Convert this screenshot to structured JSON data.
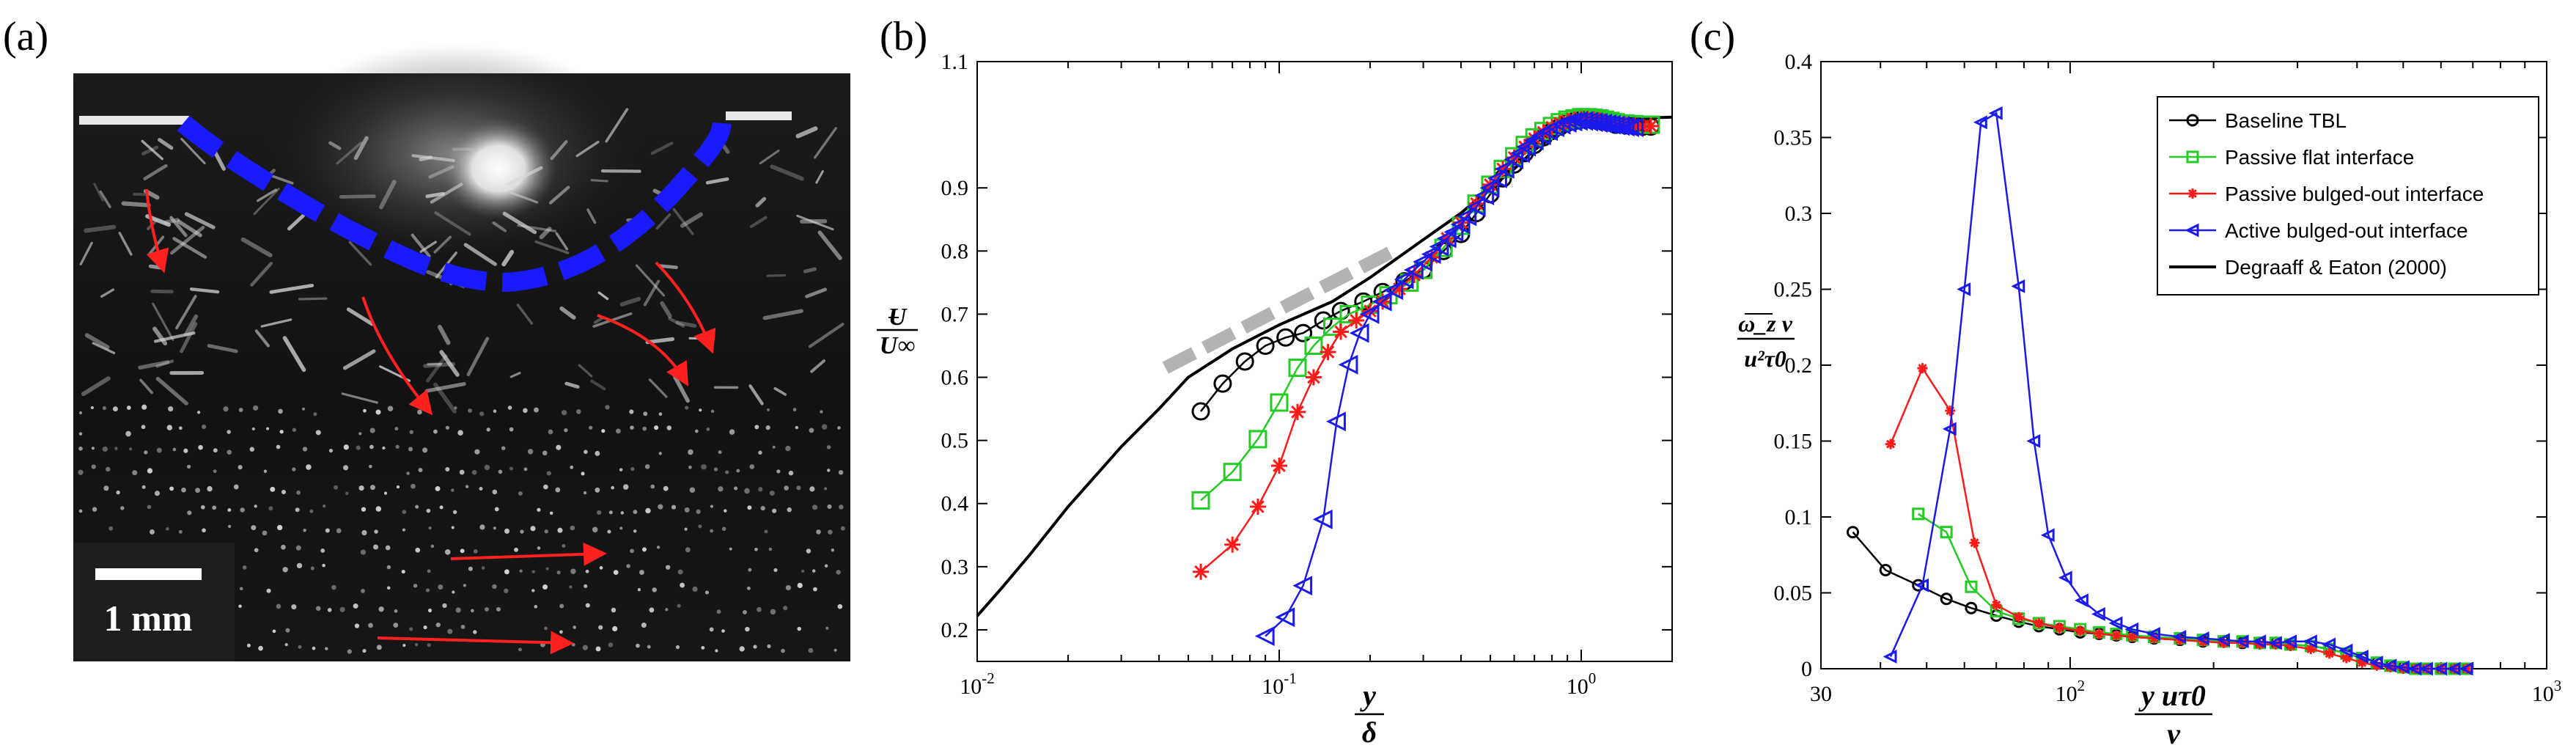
{
  "figure": {
    "panel_a": {
      "label": "(a)",
      "scale_bar_label": "1 mm",
      "colors": {
        "interface": "#1a1aff",
        "arrows": "#ff2020"
      }
    },
    "panel_b_label": "(b)",
    "panel_c_label": "(c)",
    "b_ylabel": {
      "num": "U",
      "den": "U∞"
    },
    "b_xlabel": {
      "num": "y",
      "den": "δ"
    },
    "c_ylabel": {
      "num": "ω_z ν",
      "den": "u²τ0"
    },
    "c_xlabel": {
      "num": "y uτ0",
      "den": "ν"
    }
  },
  "chart_data": [
    {
      "panel": "b",
      "type": "scatter",
      "xscale": "log",
      "xlim": [
        0.01,
        2.0
      ],
      "ylim": [
        0.15,
        1.1
      ],
      "xticks": [
        0.01,
        0.1,
        1
      ],
      "xtick_labels": [
        "10-2",
        "10-1",
        "100"
      ],
      "yticks": [
        0.2,
        0.3,
        0.4,
        0.5,
        0.6,
        0.7,
        0.8,
        0.9,
        1.1
      ],
      "ytick_labels": [
        "0.2",
        "0.3",
        "0.4",
        "0.5",
        "0.6",
        "0.7",
        "0.8",
        "0.9",
        "1.1"
      ],
      "reference_slope": {
        "x": [
          0.042,
          0.25
        ],
        "y": [
          0.615,
          0.805
        ],
        "color": "#b3b3b3"
      },
      "series": [
        {
          "name": "Degraaff & Eaton (2000)",
          "color": "#000000",
          "marker": "none",
          "x": [
            0.01,
            0.012,
            0.015,
            0.02,
            0.03,
            0.04,
            0.05,
            0.07,
            0.1,
            0.15,
            0.2,
            0.3,
            0.4,
            0.5,
            0.6,
            0.7,
            0.8,
            0.9,
            1.0,
            1.2,
            1.5,
            2.0
          ],
          "y": [
            0.222,
            0.265,
            0.32,
            0.395,
            0.49,
            0.55,
            0.6,
            0.645,
            0.683,
            0.72,
            0.758,
            0.818,
            0.86,
            0.9,
            0.93,
            0.96,
            0.98,
            0.995,
            1.005,
            1.008,
            1.01,
            1.012
          ]
        },
        {
          "name": "Baseline TBL",
          "color": "#000000",
          "marker": "circle",
          "x": [
            0.055,
            0.065,
            0.077,
            0.09,
            0.105,
            0.12,
            0.14,
            0.16,
            0.19,
            0.22,
            0.26,
            0.3,
            0.35,
            0.4,
            0.45,
            0.5,
            0.55,
            0.6,
            0.65,
            0.7,
            0.75,
            0.8,
            0.85,
            0.9,
            0.95,
            1.0,
            1.05,
            1.1,
            1.15,
            1.2,
            1.25,
            1.3,
            1.4,
            1.5,
            1.6,
            1.7
          ],
          "y": [
            0.546,
            0.59,
            0.625,
            0.65,
            0.663,
            0.67,
            0.69,
            0.705,
            0.72,
            0.735,
            0.752,
            0.77,
            0.8,
            0.827,
            0.86,
            0.89,
            0.915,
            0.937,
            0.955,
            0.968,
            0.98,
            0.99,
            0.997,
            1.003,
            1.006,
            1.008,
            1.009,
            1.008,
            1.007,
            1.005,
            1.003,
            1.0,
            0.999,
            0.998,
            0.997,
            0.997
          ]
        },
        {
          "name": "Passive flat interface",
          "color": "#22cc22",
          "marker": "square",
          "x": [
            0.055,
            0.07,
            0.085,
            0.1,
            0.115,
            0.13,
            0.15,
            0.17,
            0.2,
            0.23,
            0.27,
            0.3,
            0.35,
            0.4,
            0.45,
            0.5,
            0.55,
            0.6,
            0.65,
            0.7,
            0.75,
            0.8,
            0.85,
            0.9,
            0.95,
            1.0,
            1.05,
            1.1,
            1.15,
            1.2,
            1.25,
            1.3,
            1.4,
            1.5,
            1.6,
            1.7
          ],
          "y": [
            0.405,
            0.45,
            0.502,
            0.56,
            0.615,
            0.65,
            0.68,
            0.7,
            0.715,
            0.73,
            0.75,
            0.77,
            0.805,
            0.84,
            0.875,
            0.905,
            0.93,
            0.95,
            0.968,
            0.98,
            0.99,
            0.998,
            1.004,
            1.008,
            1.01,
            1.012,
            1.012,
            1.011,
            1.01,
            1.008,
            1.006,
            1.004,
            1.002,
            1.001,
            1.0,
            1.0
          ]
        },
        {
          "name": "Passive bulged-out interface",
          "color": "#ff1a1a",
          "marker": "star",
          "x": [
            0.055,
            0.07,
            0.085,
            0.1,
            0.115,
            0.13,
            0.145,
            0.16,
            0.18,
            0.2,
            0.22,
            0.25,
            0.28,
            0.32,
            0.36,
            0.4,
            0.45,
            0.5,
            0.55,
            0.6,
            0.65,
            0.7,
            0.75,
            0.8,
            0.85,
            0.9,
            0.95,
            1.0,
            1.05,
            1.1,
            1.15,
            1.2,
            1.25,
            1.3,
            1.4,
            1.5,
            1.6,
            1.7
          ],
          "y": [
            0.292,
            0.335,
            0.395,
            0.46,
            0.545,
            0.6,
            0.64,
            0.672,
            0.69,
            0.705,
            0.72,
            0.74,
            0.762,
            0.79,
            0.82,
            0.845,
            0.875,
            0.905,
            0.93,
            0.948,
            0.965,
            0.978,
            0.988,
            0.996,
            1.002,
            1.006,
            1.008,
            1.009,
            1.009,
            1.008,
            1.007,
            1.005,
            1.003,
            1.001,
            1.0,
            0.999,
            0.998,
            0.998
          ]
        },
        {
          "name": "Active bulged-out interface",
          "color": "#1a1aee",
          "marker": "triangle",
          "x": [
            0.09,
            0.105,
            0.12,
            0.14,
            0.155,
            0.17,
            0.185,
            0.2,
            0.22,
            0.24,
            0.26,
            0.28,
            0.3,
            0.32,
            0.34,
            0.36,
            0.38,
            0.4,
            0.42,
            0.45,
            0.48,
            0.5,
            0.53,
            0.56,
            0.6,
            0.63,
            0.66,
            0.7,
            0.74,
            0.78,
            0.82,
            0.86,
            0.9,
            0.94,
            0.98,
            1.02,
            1.06,
            1.1,
            1.14,
            1.18,
            1.22,
            1.26,
            1.3,
            1.35,
            1.4,
            1.45,
            1.5
          ],
          "y": [
            0.19,
            0.22,
            0.27,
            0.375,
            0.53,
            0.62,
            0.67,
            0.7,
            0.72,
            0.738,
            0.755,
            0.77,
            0.783,
            0.795,
            0.807,
            0.82,
            0.83,
            0.842,
            0.855,
            0.87,
            0.888,
            0.9,
            0.915,
            0.93,
            0.945,
            0.955,
            0.965,
            0.975,
            0.983,
            0.99,
            0.996,
            1.0,
            1.003,
            1.005,
            1.006,
            1.006,
            1.005,
            1.004,
            1.003,
            1.002,
            1.001,
            1.0,
            0.999,
            0.998,
            0.997,
            0.996,
            0.996
          ]
        }
      ]
    },
    {
      "panel": "c",
      "type": "line",
      "xscale": "log",
      "xlim": [
        30,
        1000
      ],
      "ylim": [
        0,
        0.4
      ],
      "xticks": [
        30,
        100,
        1000
      ],
      "xtick_labels": [
        "30",
        "102",
        "103"
      ],
      "yticks": [
        0,
        0.05,
        0.1,
        0.15,
        0.2,
        0.25,
        0.3,
        0.35,
        0.4
      ],
      "ytick_labels": [
        "0",
        "0.05",
        "0.1",
        "0.15",
        "0.2",
        "0.25",
        "0.3",
        "0.35",
        "0.4"
      ],
      "legend_position": "top-right",
      "series": [
        {
          "name": "Baseline TBL",
          "color": "#000000",
          "marker": "circle",
          "x": [
            35,
            41,
            48,
            55,
            62,
            70,
            78,
            86,
            95,
            105,
            115,
            125,
            135,
            150,
            170,
            190,
            210,
            230,
            250,
            270,
            290,
            320,
            350,
            380,
            410,
            440,
            470,
            500,
            530,
            560,
            600,
            640,
            680
          ],
          "y": [
            0.09,
            0.065,
            0.055,
            0.046,
            0.04,
            0.035,
            0.031,
            0.028,
            0.026,
            0.024,
            0.023,
            0.022,
            0.021,
            0.02,
            0.019,
            0.018,
            0.018,
            0.017,
            0.017,
            0.017,
            0.016,
            0.015,
            0.013,
            0.01,
            0.007,
            0.004,
            0.002,
            0.001,
            0.0,
            0.0,
            0.0,
            0.0,
            0.0
          ]
        },
        {
          "name": "Passive flat interface",
          "color": "#22cc22",
          "marker": "square",
          "x": [
            48,
            55,
            62,
            70,
            78,
            86,
            95,
            105,
            115,
            125,
            135,
            150,
            170,
            190,
            210,
            230,
            250,
            270,
            290,
            320,
            350,
            380,
            410,
            440,
            470,
            500,
            530,
            560,
            600,
            640,
            680
          ],
          "y": [
            0.102,
            0.09,
            0.054,
            0.038,
            0.033,
            0.03,
            0.028,
            0.026,
            0.024,
            0.023,
            0.022,
            0.021,
            0.02,
            0.019,
            0.018,
            0.018,
            0.017,
            0.017,
            0.016,
            0.015,
            0.013,
            0.01,
            0.007,
            0.004,
            0.002,
            0.001,
            0.0,
            0.0,
            0.0,
            0.0,
            0.0
          ]
        },
        {
          "name": "Passive bulged-out interface",
          "color": "#ff1a1a",
          "marker": "star",
          "x": [
            42,
            49,
            56,
            63,
            70,
            78,
            86,
            95,
            105,
            115,
            125,
            135,
            150,
            170,
            190,
            210,
            230,
            250,
            270,
            290,
            320,
            350,
            380,
            410,
            440,
            470,
            500,
            530,
            560,
            600,
            640,
            680
          ],
          "y": [
            0.148,
            0.198,
            0.17,
            0.083,
            0.042,
            0.034,
            0.03,
            0.027,
            0.025,
            0.023,
            0.022,
            0.021,
            0.02,
            0.019,
            0.018,
            0.017,
            0.017,
            0.016,
            0.016,
            0.015,
            0.013,
            0.01,
            0.007,
            0.004,
            0.002,
            0.001,
            0.0,
            0.0,
            0.0,
            0.0,
            0.0,
            0.0
          ]
        },
        {
          "name": "Active bulged-out interface",
          "color": "#1a1aee",
          "marker": "triangle",
          "x": [
            42,
            49,
            56,
            60,
            65,
            70,
            78,
            84,
            90,
            98,
            106,
            115,
            125,
            135,
            150,
            170,
            190,
            210,
            230,
            250,
            270,
            290,
            320,
            350,
            380,
            410,
            440,
            470,
            500,
            530,
            560,
            600,
            640,
            680
          ],
          "y": [
            0.008,
            0.055,
            0.158,
            0.25,
            0.36,
            0.366,
            0.252,
            0.15,
            0.088,
            0.06,
            0.045,
            0.036,
            0.03,
            0.026,
            0.023,
            0.021,
            0.02,
            0.019,
            0.018,
            0.018,
            0.017,
            0.018,
            0.018,
            0.016,
            0.012,
            0.008,
            0.004,
            0.002,
            0.001,
            0.0,
            0.0,
            0.0,
            0.0,
            0.0
          ]
        },
        {
          "name": "Degraaff & Eaton (2000)",
          "color": "#000000",
          "marker": "none",
          "x": [],
          "y": []
        }
      ]
    }
  ]
}
